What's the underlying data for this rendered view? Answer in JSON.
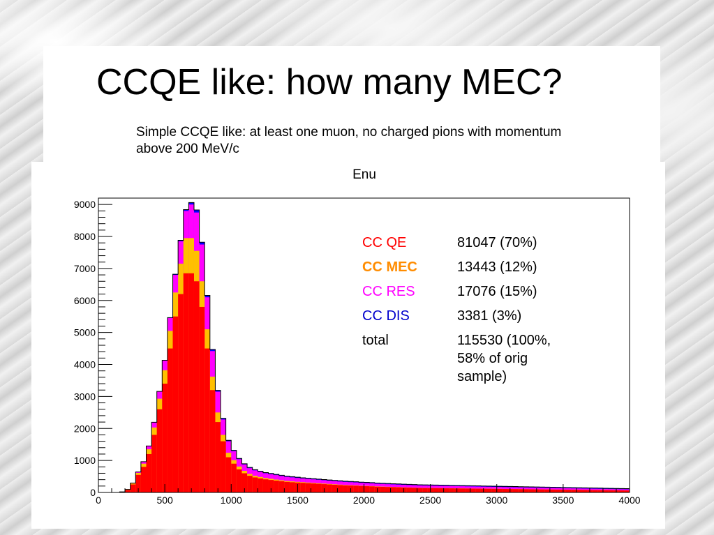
{
  "slide": {
    "title": "CCQE like: how many MEC?",
    "subtitle": "Simple CCQE like: at least one muon, no charged pions with momentum above 200 MeV/c"
  },
  "chart_data": {
    "type": "stacked-histogram",
    "title": "Enu",
    "xlim": [
      0,
      4000
    ],
    "ylim": [
      0,
      9200
    ],
    "x_ticks": [
      0,
      500,
      1000,
      1500,
      2000,
      2500,
      3000,
      3500,
      4000
    ],
    "y_ticks": [
      0,
      1000,
      2000,
      3000,
      4000,
      5000,
      6000,
      7000,
      8000,
      9000
    ],
    "bin_width": 40,
    "x": [
      20,
      60,
      100,
      140,
      180,
      220,
      260,
      300,
      340,
      380,
      420,
      460,
      500,
      540,
      580,
      620,
      660,
      700,
      740,
      780,
      820,
      860,
      900,
      940,
      980,
      1020,
      1060,
      1100,
      1140,
      1180,
      1220,
      1260,
      1300,
      1340,
      1380,
      1420,
      1460,
      1500,
      1540,
      1580,
      1620,
      1660,
      1700,
      1740,
      1780,
      1820,
      1860,
      1900,
      1940,
      1980,
      2020,
      2060,
      2100,
      2140,
      2180,
      2220,
      2260,
      2300,
      2340,
      2380,
      2420,
      2460,
      2500,
      2540,
      2580,
      2620,
      2660,
      2700,
      2740,
      2780,
      2820,
      2860,
      2900,
      2940,
      2980,
      3020,
      3060,
      3100,
      3140,
      3180,
      3220,
      3260,
      3300,
      3340,
      3380,
      3420,
      3460,
      3500,
      3540,
      3580,
      3620,
      3660,
      3700,
      3740,
      3780,
      3820,
      3860,
      3900,
      3940,
      3980
    ],
    "series": [
      {
        "name": "CC QE",
        "color": "#ff0000",
        "values": [
          0,
          0,
          0,
          0,
          20,
          80,
          250,
          550,
          800,
          1200,
          1800,
          2600,
          3400,
          4500,
          5500,
          6200,
          6850,
          6850,
          6600,
          5800,
          4500,
          3200,
          2200,
          1600,
          1100,
          900,
          720,
          600,
          520,
          470,
          440,
          410,
          390,
          370,
          350,
          330,
          320,
          310,
          300,
          290,
          280,
          270,
          260,
          250,
          240,
          230,
          220,
          215,
          210,
          200,
          195,
          190,
          180,
          175,
          170,
          165,
          160,
          155,
          150,
          145,
          140,
          138,
          136,
          134,
          132,
          130,
          128,
          126,
          124,
          122,
          120,
          118,
          116,
          114,
          112,
          110,
          108,
          106,
          104,
          102,
          100,
          98,
          96,
          94,
          92,
          90,
          88,
          86,
          84,
          82,
          80,
          78,
          76,
          74,
          72,
          70,
          68,
          66,
          64,
          62
        ]
      },
      {
        "name": "CC MEC",
        "color": "#ffc000",
        "values": [
          0,
          0,
          0,
          0,
          0,
          10,
          30,
          60,
          100,
          150,
          230,
          330,
          420,
          550,
          750,
          950,
          1100,
          1100,
          950,
          800,
          600,
          420,
          300,
          200,
          140,
          110,
          90,
          75,
          60,
          50,
          44,
          40,
          36,
          33,
          30,
          28,
          26,
          24,
          22,
          20,
          19,
          18,
          17,
          16,
          15,
          14,
          13,
          12,
          11,
          10,
          10,
          9,
          9,
          8,
          8,
          7,
          7,
          6,
          6,
          6,
          5,
          5,
          5,
          5,
          4,
          4,
          4,
          4,
          4,
          3,
          3,
          3,
          3,
          3,
          3,
          3,
          2,
          2,
          2,
          2,
          2,
          2,
          2,
          2,
          2,
          2,
          2,
          1,
          1,
          1,
          1,
          1,
          1,
          1,
          1,
          1,
          1,
          1,
          1,
          1
        ]
      },
      {
        "name": "CC RES",
        "color": "#ff00ff",
        "values": [
          0,
          0,
          0,
          0,
          0,
          5,
          15,
          30,
          60,
          100,
          160,
          220,
          300,
          400,
          550,
          700,
          850,
          1050,
          1200,
          1150,
          1000,
          800,
          650,
          480,
          360,
          280,
          230,
          200,
          180,
          170,
          160,
          150,
          145,
          140,
          135,
          130,
          125,
          120,
          115,
          112,
          110,
          108,
          105,
          102,
          100,
          98,
          96,
          94,
          92,
          90,
          88,
          86,
          84,
          82,
          80,
          79,
          78,
          77,
          76,
          75,
          74,
          73,
          72,
          71,
          70,
          69,
          68,
          67,
          66,
          65,
          64,
          63,
          62,
          61,
          60,
          59,
          58,
          57,
          56,
          55,
          54,
          53,
          52,
          51,
          50,
          49,
          48,
          47,
          46,
          45,
          44,
          43,
          42,
          41,
          40,
          39,
          38,
          37,
          36,
          35
        ]
      },
      {
        "name": "CC DIS",
        "color": "#0000ff",
        "values": [
          0,
          0,
          0,
          0,
          0,
          0,
          0,
          1,
          2,
          3,
          5,
          8,
          10,
          15,
          20,
          30,
          40,
          60,
          80,
          70,
          60,
          50,
          40,
          35,
          30,
          25,
          22,
          22,
          22,
          22,
          22,
          22,
          22,
          22,
          22,
          22,
          22,
          22,
          22,
          22,
          22,
          22,
          22,
          22,
          22,
          22,
          22,
          22,
          22,
          22,
          22,
          22,
          22,
          22,
          22,
          22,
          22,
          22,
          22,
          22,
          22,
          22,
          22,
          22,
          22,
          22,
          22,
          22,
          22,
          22,
          22,
          22,
          22,
          22,
          22,
          22,
          22,
          22,
          22,
          22,
          22,
          22,
          22,
          22,
          22,
          22,
          22,
          22,
          22,
          22,
          22,
          22,
          22,
          22,
          22,
          22,
          22,
          22,
          22,
          22
        ]
      }
    ],
    "legend": {
      "placement": "top-right, inside plot",
      "rows": [
        {
          "name": "CC QE",
          "color": "#ff0000",
          "bold": false,
          "lines": [
            "81047 (70%)"
          ]
        },
        {
          "name": "CC MEC",
          "color": "#ff8c00",
          "bold": true,
          "lines": [
            "13443 (12%)"
          ]
        },
        {
          "name": "CC RES",
          "color": "#ff00ff",
          "bold": false,
          "lines": [
            "17076 (15%)"
          ]
        },
        {
          "name": "CC DIS",
          "color": "#0000cc",
          "bold": false,
          "lines": [
            "3381 (3%)"
          ]
        },
        {
          "name": "total",
          "color": "#000000",
          "bold": false,
          "lines": [
            "115530 (100%,",
            "58% of orig",
            "sample)"
          ]
        }
      ]
    }
  }
}
